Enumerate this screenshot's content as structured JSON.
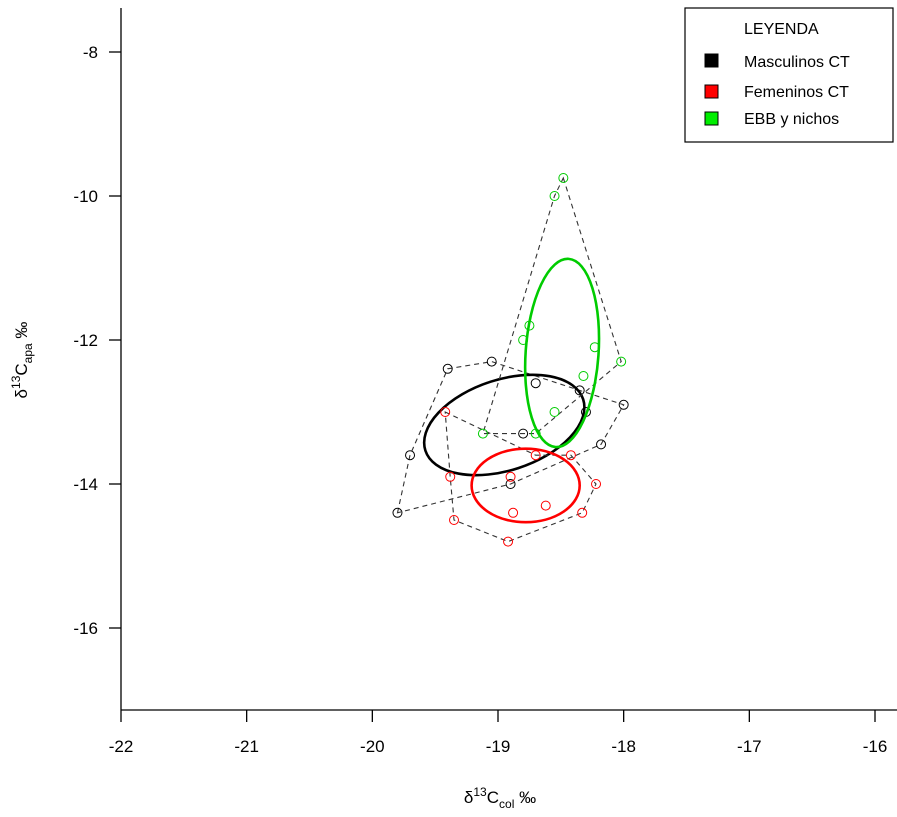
{
  "chart_data": {
    "type": "scatter",
    "title": "",
    "xlabel": {
      "prefix": "δ",
      "sup": "13",
      "main": "C",
      "sub": "col",
      "suffix": " ‰"
    },
    "ylabel": {
      "prefix": "δ",
      "sup": "13",
      "main": "C",
      "sub": "apa",
      "suffix": " ‰"
    },
    "xlim": [
      -22,
      -16
    ],
    "ylim": [
      -17.2,
      -7.4
    ],
    "xticks": [
      -22,
      -21,
      -20,
      -19,
      -18,
      -17,
      -16
    ],
    "xtick_labels": [
      "-22",
      "-21",
      "-20",
      "-19",
      "-18",
      "-17",
      "-16"
    ],
    "yticks": [
      -8,
      -10,
      -12,
      -14,
      -16
    ],
    "ytick_labels": [
      "-8",
      "-10",
      "-12",
      "-14",
      "-16"
    ],
    "grid": false,
    "legend": {
      "title": "LEYENDA",
      "position": "top-right",
      "entries": [
        "Masculinos CT",
        "Femeninos CT",
        "EBB y nichos"
      ]
    },
    "series": [
      {
        "name": "Masculinos CT",
        "color": "#000000",
        "points": [
          {
            "x": -19.8,
            "y": -14.4
          },
          {
            "x": -19.7,
            "y": -13.6
          },
          {
            "x": -19.4,
            "y": -12.4
          },
          {
            "x": -19.05,
            "y": -12.3
          },
          {
            "x": -18.7,
            "y": -12.6
          },
          {
            "x": -18.8,
            "y": -13.3
          },
          {
            "x": -18.9,
            "y": -14.0
          },
          {
            "x": -18.3,
            "y": -13.0
          },
          {
            "x": -18.0,
            "y": -12.9
          },
          {
            "x": -18.18,
            "y": -13.45
          },
          {
            "x": -18.35,
            "y": -12.7
          }
        ],
        "hull": [
          [
            -19.8,
            -14.4
          ],
          [
            -19.7,
            -13.6
          ],
          [
            -19.4,
            -12.4
          ],
          [
            -19.05,
            -12.3
          ],
          [
            -18.0,
            -12.9
          ],
          [
            -18.18,
            -13.45
          ],
          [
            -18.9,
            -14.0
          ]
        ],
        "ellipse": {
          "cx": -18.95,
          "cy": -13.18,
          "rx": 0.66,
          "ry": 0.63,
          "rotate_deg": -18
        }
      },
      {
        "name": "Femeninos CT",
        "color": "#ff0000",
        "points": [
          {
            "x": -19.42,
            "y": -13.0
          },
          {
            "x": -19.38,
            "y": -13.9
          },
          {
            "x": -19.35,
            "y": -14.5
          },
          {
            "x": -18.92,
            "y": -14.8
          },
          {
            "x": -18.88,
            "y": -14.4
          },
          {
            "x": -18.9,
            "y": -13.9
          },
          {
            "x": -18.7,
            "y": -13.6
          },
          {
            "x": -18.62,
            "y": -14.3
          },
          {
            "x": -18.42,
            "y": -13.6
          },
          {
            "x": -18.33,
            "y": -14.4
          },
          {
            "x": -18.22,
            "y": -14.0
          }
        ],
        "hull": [
          [
            -19.42,
            -13.0
          ],
          [
            -18.7,
            -13.6
          ],
          [
            -18.42,
            -13.6
          ],
          [
            -18.22,
            -14.0
          ],
          [
            -18.33,
            -14.4
          ],
          [
            -18.92,
            -14.8
          ],
          [
            -19.35,
            -14.5
          ],
          [
            -19.38,
            -13.9
          ]
        ],
        "ellipse": {
          "cx": -18.78,
          "cy": -14.02,
          "rx": 0.43,
          "ry": 0.51,
          "rotate_deg": 0
        }
      },
      {
        "name": "EBB y nichos",
        "color": "#00cc00",
        "points": [
          {
            "x": -18.48,
            "y": -9.75
          },
          {
            "x": -18.55,
            "y": -10.0
          },
          {
            "x": -18.75,
            "y": -11.8
          },
          {
            "x": -18.8,
            "y": -12.0
          },
          {
            "x": -18.23,
            "y": -12.1
          },
          {
            "x": -18.02,
            "y": -12.3
          },
          {
            "x": -18.32,
            "y": -12.5
          },
          {
            "x": -18.55,
            "y": -13.0
          },
          {
            "x": -19.12,
            "y": -13.3
          },
          {
            "x": -18.7,
            "y": -13.3
          }
        ],
        "hull": [
          [
            -18.48,
            -9.75
          ],
          [
            -18.02,
            -12.3
          ],
          [
            -18.7,
            -13.3
          ],
          [
            -19.12,
            -13.3
          ],
          [
            -18.55,
            -10.0
          ]
        ],
        "ellipse": {
          "cx": -18.49,
          "cy": -12.18,
          "rx": 0.29,
          "ry": 1.31,
          "rotate_deg": 4
        }
      }
    ]
  }
}
